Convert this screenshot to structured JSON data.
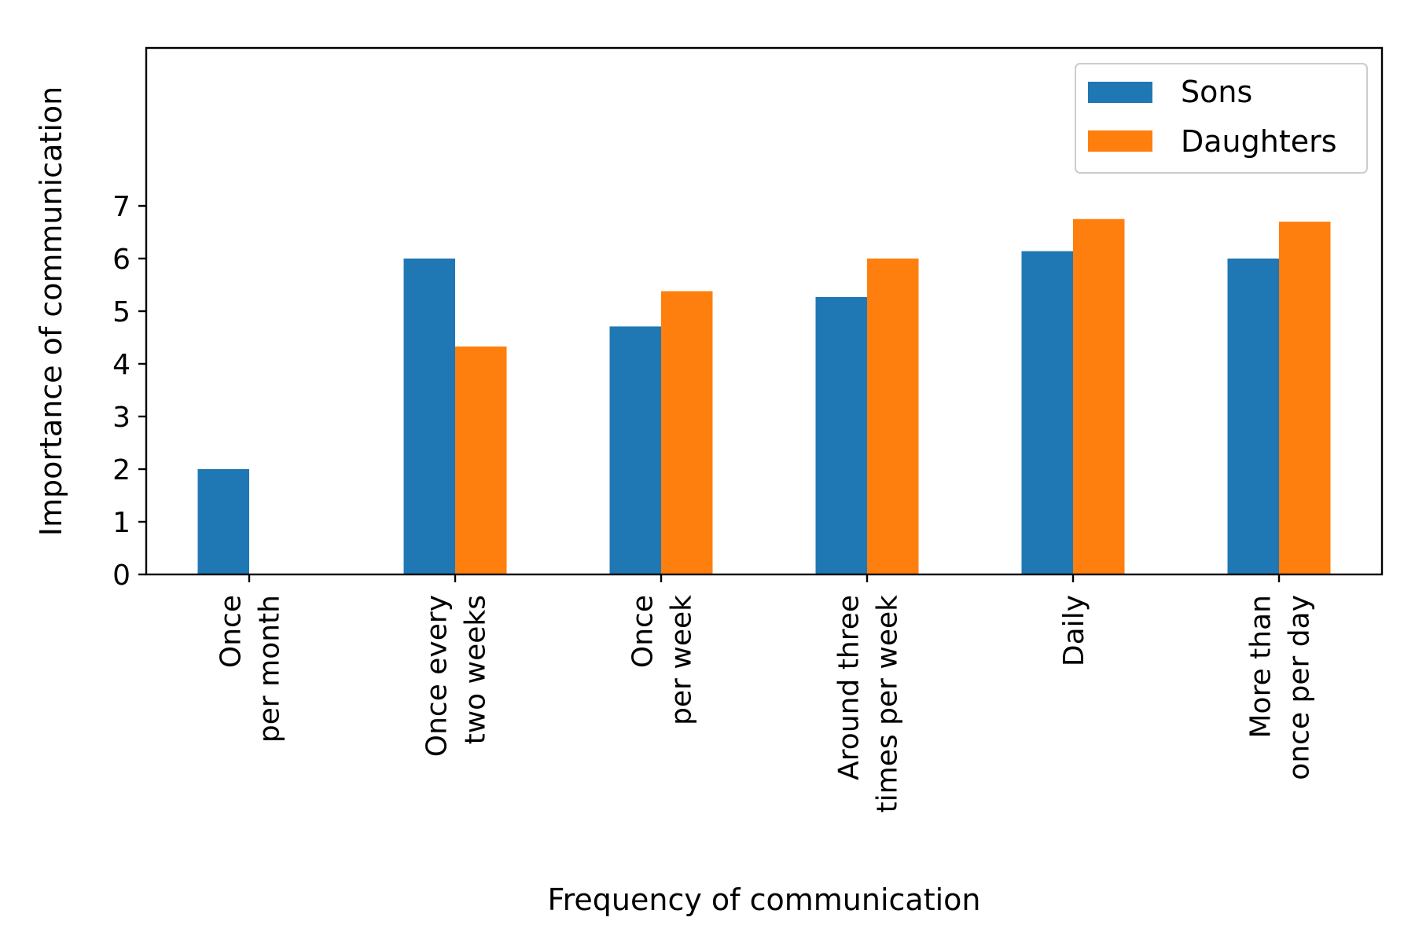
{
  "chart_data": {
    "type": "bar",
    "title": "",
    "xlabel": "Frequency of communication",
    "ylabel": "Importance of communication",
    "ylim": [
      0,
      10
    ],
    "yticks": [
      0,
      1,
      2,
      3,
      4,
      5,
      6,
      7
    ],
    "categories": [
      [
        "Once",
        "per month"
      ],
      [
        "Once every",
        "two weeks"
      ],
      [
        "Once",
        "per week"
      ],
      [
        "Around three",
        "times per week"
      ],
      [
        "Daily"
      ],
      [
        "More than",
        "once per day"
      ]
    ],
    "series": [
      {
        "name": "Sons",
        "color": "#1f77b4",
        "values": [
          2.0,
          6.0,
          4.71,
          5.27,
          6.14,
          6.0
        ]
      },
      {
        "name": "Daughters",
        "color": "#ff7f0e",
        "values": [
          0.0,
          4.33,
          5.38,
          6.0,
          6.75,
          6.7
        ]
      }
    ],
    "legend_position": "top-right",
    "grid": false
  }
}
